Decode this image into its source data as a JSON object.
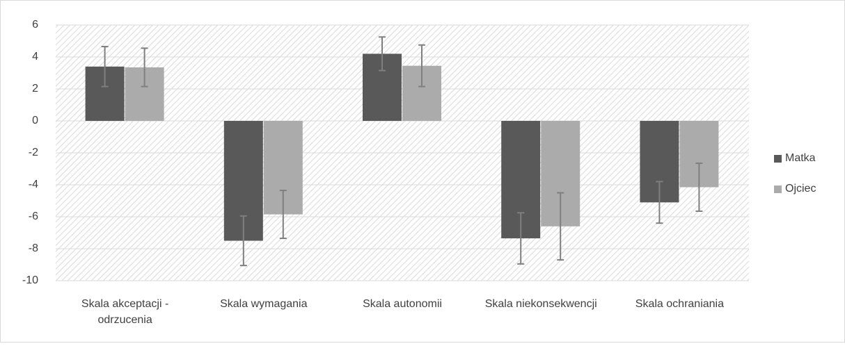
{
  "chart_data": {
    "type": "bar",
    "categories": [
      "Skala akceptacji - odrzucenia",
      "Skala wymagania",
      "Skala autonomii",
      "Skala niekonsekwencji",
      "Skala ochraniania"
    ],
    "series": [
      {
        "name": "Matka",
        "color": "#595959",
        "values": [
          3.4,
          -7.5,
          4.2,
          -7.35,
          -5.1
        ],
        "errors": [
          1.25,
          1.55,
          1.05,
          1.6,
          1.3
        ]
      },
      {
        "name": "Ojciec",
        "color": "#ababab",
        "values": [
          3.35,
          -5.85,
          3.45,
          -6.6,
          -4.15
        ],
        "errors": [
          1.2,
          1.5,
          1.3,
          2.1,
          1.5
        ]
      }
    ],
    "ylim": [
      -10,
      6
    ],
    "yticks": [
      -10,
      -8,
      -6,
      -4,
      -2,
      0,
      2,
      4,
      6
    ],
    "grid": true,
    "legend": "right"
  }
}
